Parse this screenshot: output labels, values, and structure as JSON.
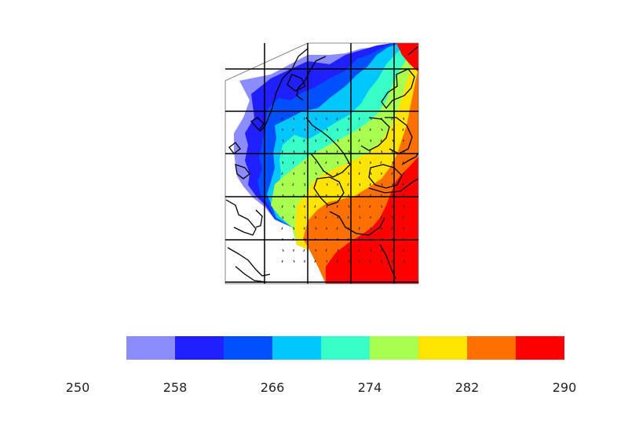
{
  "map": {
    "type": "filled-contour-map",
    "region": "Northern Europe (Scandinavia, Baltic, British Isles)",
    "gridlines": true,
    "coastlines": true
  },
  "colorbar": {
    "tick_labels": [
      "250",
      "258",
      "266",
      "274",
      "282",
      "290"
    ],
    "levels": [
      254,
      258,
      262,
      266,
      270,
      274,
      278,
      282,
      286,
      290
    ],
    "colors": [
      "#8c8cff",
      "#2020ff",
      "#0050ff",
      "#00c8ff",
      "#38ffc8",
      "#a8ff50",
      "#ffe400",
      "#ff7000",
      "#ff0000"
    ]
  }
}
